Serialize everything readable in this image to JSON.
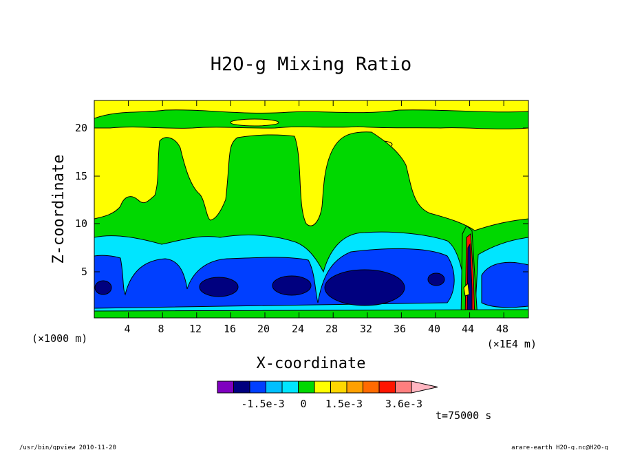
{
  "chart_data": {
    "type": "contour",
    "title": "H2O-g Mixing Ratio",
    "xlabel": "X-coordinate",
    "ylabel": "Z-coordinate",
    "x_unit_left": "(×1000 m)",
    "x_unit_right": "(×1E4 m)",
    "xlim": [
      0,
      51.5
    ],
    "ylim": [
      0,
      23
    ],
    "x_ticks": [
      "4",
      "8",
      "12",
      "16",
      "20",
      "24",
      "28",
      "32",
      "36",
      "40",
      "44",
      "48"
    ],
    "y_ticks": [
      "5",
      "10",
      "15",
      "20"
    ],
    "colorbar": {
      "colors": [
        "#7f00bf",
        "#00007f",
        "#003fff",
        "#00bfff",
        "#00e5ff",
        "#00d800",
        "#ffff00",
        "#ffd700",
        "#ffa000",
        "#ff6a00",
        "#ff1500",
        "#ff7f7f",
        "#ffb6c1"
      ],
      "labels": [
        "-1.5e-3",
        "0",
        "1.5e-3",
        "3.6e-3"
      ]
    },
    "time_label": "t=75000 s"
  },
  "footer": {
    "left": "/usr/bin/gpview  2010-11-20",
    "right": "arare-earth_H2O-g.nc@H2O-g"
  }
}
